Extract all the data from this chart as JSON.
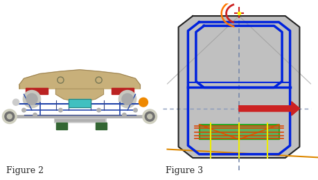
{
  "fig_width": 4.6,
  "fig_height": 2.6,
  "dpi": 100,
  "bg_color": "#ffffff",
  "fig2_label": "Figure 2",
  "fig3_label": "Figure 3",
  "label_fontsize": 9,
  "fig3_bg": "#bbbbbb"
}
